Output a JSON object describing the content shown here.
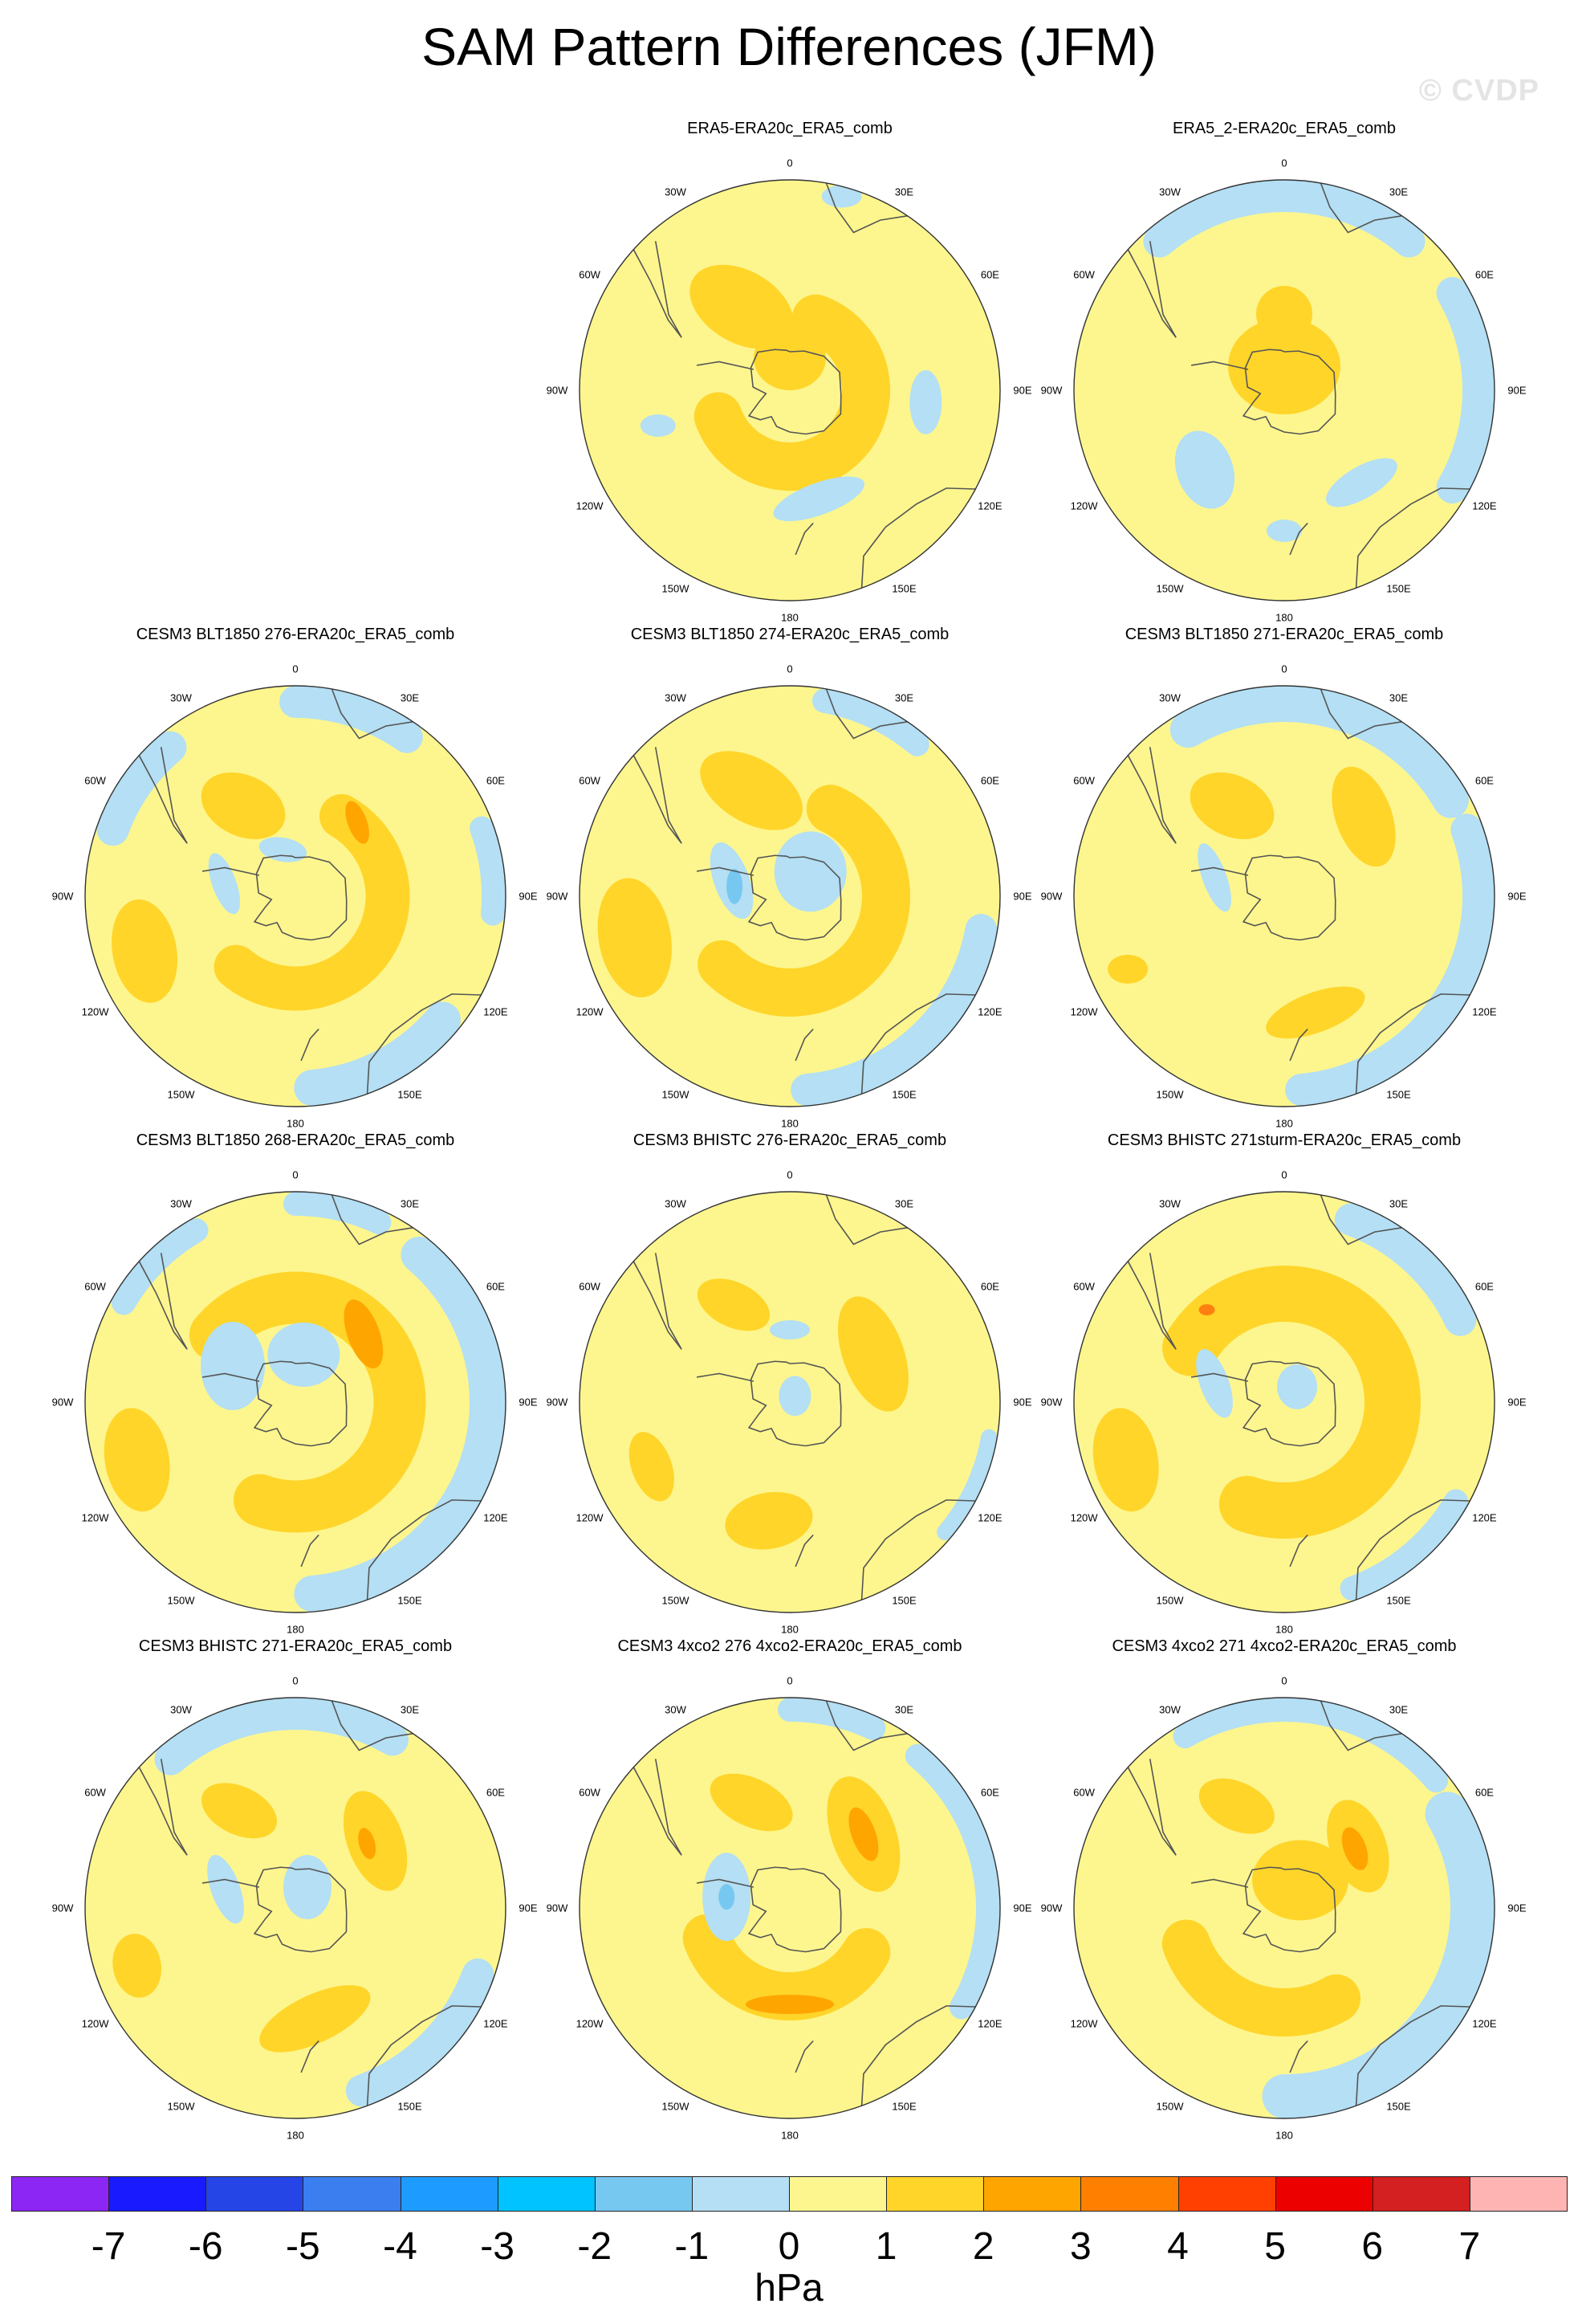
{
  "title": "SAM Pattern Differences (JFM)",
  "watermark": "© CVDP",
  "colors": {
    "pale_yellow": "#fdf68e",
    "gold": "#ffd52a",
    "orange": "#ffa500",
    "light_blue": "#b4dff4",
    "sky_blue": "#76c8f0",
    "dark_orange": "#ff8010"
  },
  "map_labels": {
    "top": "0",
    "bottom": "180",
    "left": "90W",
    "right": "90E",
    "tl1": "30W",
    "tl2": "60W",
    "tr1": "30E",
    "tr2": "60E",
    "bl1": "120W",
    "bl2": "150W",
    "br1": "120E",
    "br2": "150E"
  },
  "panels": [
    {
      "title": "ERA5-ERA20c_ERA5_comb",
      "variant": 0
    },
    {
      "title": "ERA5_2-ERA20c_ERA5_comb",
      "variant": 1
    },
    {
      "title": "CESM3 BLT1850 276-ERA20c_ERA5_comb",
      "variant": 2
    },
    {
      "title": "CESM3 BLT1850 274-ERA20c_ERA5_comb",
      "variant": 3
    },
    {
      "title": "CESM3 BLT1850 271-ERA20c_ERA5_comb",
      "variant": 4
    },
    {
      "title": "CESM3 BLT1850 268-ERA20c_ERA5_comb",
      "variant": 5
    },
    {
      "title": "CESM3 BHISTC 276-ERA20c_ERA5_comb",
      "variant": 6
    },
    {
      "title": "CESM3 BHISTC 271sturm-ERA20c_ERA5_comb",
      "variant": 7
    },
    {
      "title": "CESM3 BHISTC 271-ERA20c_ERA5_comb",
      "variant": 8
    },
    {
      "title": "CESM3 4xco2 276 4xco2-ERA20c_ERA5_comb",
      "variant": 9
    },
    {
      "title": "CESM3 4xco2 271 4xco2-ERA20c_ERA5_comb",
      "variant": 10
    }
  ],
  "colorbar": {
    "units": "hPa",
    "tick_labels": [
      "-7",
      "-6",
      "-5",
      "-4",
      "-3",
      "-2",
      "-1",
      "0",
      "1",
      "2",
      "3",
      "4",
      "5",
      "6",
      "7"
    ],
    "colors": [
      "#8c26f5",
      "#1a1aff",
      "#2645e6",
      "#3a7ef0",
      "#1e9bff",
      "#00c3ff",
      "#76c8f0",
      "#b4dff4",
      "#fdf68e",
      "#ffd52a",
      "#ffa500",
      "#ff7f00",
      "#ff4000",
      "#ec0000",
      "#d42020",
      "#ffb4b4"
    ]
  }
}
